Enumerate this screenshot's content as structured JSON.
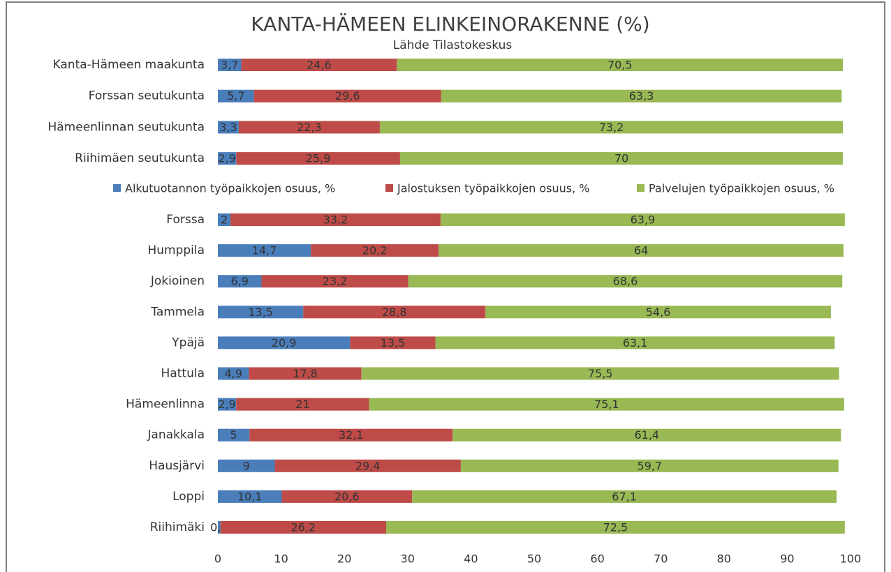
{
  "chart_data": {
    "type": "stacked_barh",
    "title": "KANTA-HÄMEEN ELINKEINORAKENNE (%)",
    "subtitle": "Lähde Tilastokeskus",
    "categories": [
      "Kanta-Hämeen maakunta",
      "Forssan seutukunta",
      "Hämeenlinnan seutukunta",
      "Riihimäen seutukunta",
      "Forssa",
      "Humppila",
      "Jokioinen",
      "Tammela",
      "Ypäjä",
      "Hattula",
      "Hämeenlinna",
      "Janakkala",
      "Hausjärvi",
      "Loppi",
      "Riihimäki"
    ],
    "series": [
      {
        "name": "Alkutuotannon työpaikkojen osuus, %",
        "color": "#4a7ebb",
        "values": [
          3.7,
          5.7,
          3.3,
          2.9,
          2,
          14.7,
          6.9,
          13.5,
          20.9,
          4.9,
          2.9,
          5,
          9,
          10.1,
          0.4
        ],
        "value_labels": [
          "3,7",
          "5,7",
          "3,3",
          "2,9",
          "2",
          "14,7",
          "6,9",
          "13,5",
          "20,9",
          "4,9",
          "2,9",
          "5",
          "9",
          "10,1",
          "0,4"
        ]
      },
      {
        "name": "Jalostuksen työpaikkojen osuus, %",
        "color": "#be4b48",
        "values": [
          24.6,
          29.6,
          22.3,
          25.9,
          33.2,
          20.2,
          23.2,
          28.8,
          13.5,
          17.8,
          21,
          32.1,
          29.4,
          20.6,
          26.2
        ],
        "value_labels": [
          "24,6",
          "29,6",
          "22,3",
          "25,9",
          "33,2",
          "20,2",
          "23,2",
          "28,8",
          "13,5",
          "17,8",
          "21",
          "32,1",
          "29,4",
          "20,6",
          "26,2"
        ]
      },
      {
        "name": "Palvelujen työpaikkojen osuus, %",
        "color": "#98b954",
        "values": [
          70.5,
          63.3,
          73.2,
          70,
          63.9,
          64,
          68.6,
          54.6,
          63.1,
          75.5,
          75.1,
          61.4,
          59.7,
          67.1,
          72.5
        ],
        "value_labels": [
          "70,5",
          "63,3",
          "73,2",
          "70",
          "63,9",
          "64",
          "68,6",
          "54,6",
          "63,1",
          "75,5",
          "75,1",
          "61,4",
          "59,7",
          "67,1",
          "72,5"
        ]
      }
    ],
    "xlim": [
      0,
      100
    ],
    "xticks": [
      0,
      10,
      20,
      30,
      40,
      50,
      60,
      70,
      80,
      90,
      100
    ],
    "grid": false
  }
}
